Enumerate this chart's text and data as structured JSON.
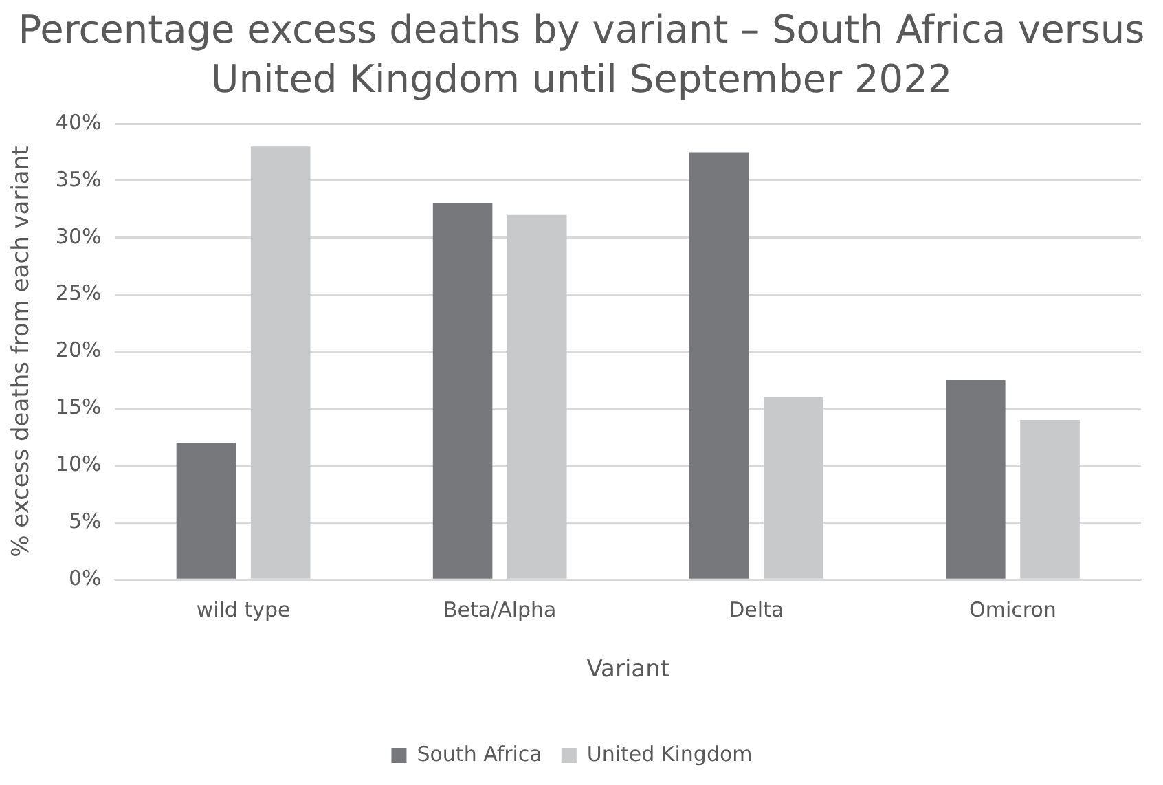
{
  "chart_data": {
    "type": "bar",
    "title": "Percentage excess deaths by variant – South Africa versus United Kingdom until September 2022",
    "xlabel": "Variant",
    "ylabel": "% excess deaths from each variant",
    "categories": [
      "wild type",
      "Beta/Alpha",
      "Delta",
      "Omicron"
    ],
    "series": [
      {
        "name": "South Africa",
        "color": "#77787b",
        "values": [
          12,
          33,
          37.5,
          17.5
        ]
      },
      {
        "name": "United Kingdom",
        "color": "#c8c9cb",
        "values": [
          38,
          32,
          16,
          14
        ]
      }
    ],
    "ylim": [
      0,
      40
    ],
    "yticks": [
      {
        "value": 0,
        "label": "0%"
      },
      {
        "value": 5,
        "label": "5%"
      },
      {
        "value": 10,
        "label": "10%"
      },
      {
        "value": 15,
        "label": "15%"
      },
      {
        "value": 20,
        "label": "20%"
      },
      {
        "value": 25,
        "label": "25%"
      },
      {
        "value": 30,
        "label": "30%"
      },
      {
        "value": 35,
        "label": "35%"
      },
      {
        "value": 40,
        "label": "40%"
      }
    ],
    "grid": "y",
    "legend": "bottom"
  }
}
